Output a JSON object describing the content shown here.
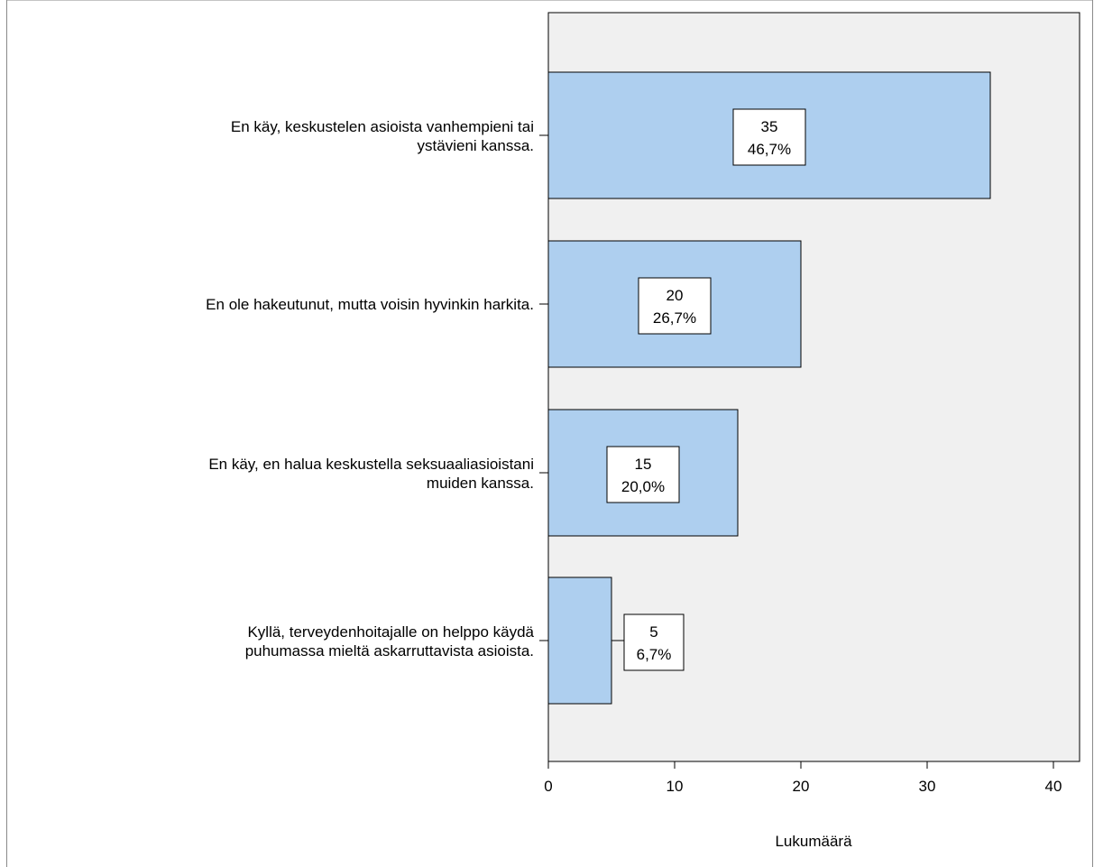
{
  "chart_data": {
    "type": "bar",
    "orientation": "horizontal",
    "categories": [
      [
        "En käy, keskustelen asioista vanhempieni tai",
        "ystävieni kanssa."
      ],
      [
        "En ole hakeutunut, mutta voisin hyvinkin harkita."
      ],
      [
        "En käy, en halua keskustella seksuaaliasioistani",
        "muiden kanssa."
      ],
      [
        "Kyllä, terveydenhoitajalle on helppo käydä",
        "puhumassa mieltä askarruttavista asioista."
      ]
    ],
    "values": [
      35,
      20,
      15,
      5
    ],
    "value_labels": [
      "35",
      "20",
      "15",
      "5"
    ],
    "percent_labels": [
      "46,7%",
      "26,7%",
      "20,0%",
      "6,7%"
    ],
    "xlabel": "Lukumäärä",
    "xlim": [
      0,
      42
    ],
    "xticks": [
      0,
      10,
      20,
      30,
      40
    ],
    "grid": false,
    "bar_color": "#aecfef",
    "plot_background": "#f0f0f0"
  }
}
